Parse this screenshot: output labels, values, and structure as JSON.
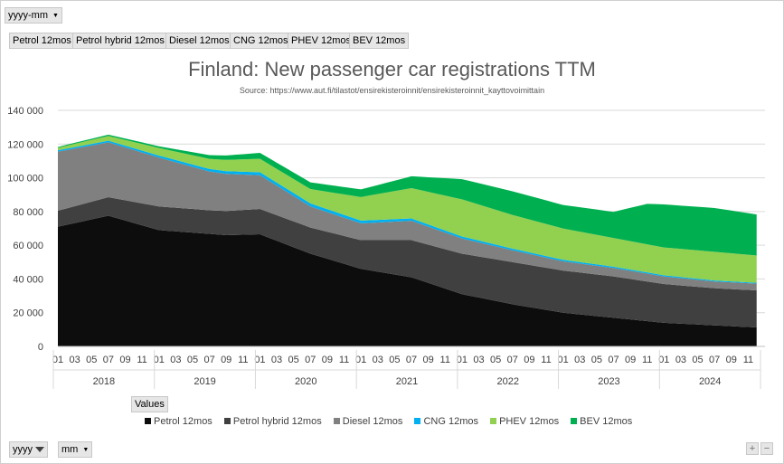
{
  "pivot": {
    "top_filter": "yyyy-mm",
    "value_fields": [
      "Petrol 12mos",
      "Petrol hybrid 12mos",
      "Diesel 12mos",
      "CNG 12mos",
      "PHEV 12mos",
      "BEV 12mos"
    ],
    "values_label": "Values",
    "row_field_1": "yyyy",
    "row_field_2": "mm",
    "zoom_in": "+",
    "zoom_out": "−"
  },
  "chart_data": {
    "type": "area",
    "stacked": true,
    "title": "Finland: New passenger  car registrations TTM",
    "subtitle": "Source: https://www.aut.fi/tilastot/ensirekisteroinnit/ensirekisteroinnit_kayttovoimittain",
    "y_ticks": [
      "0",
      "20 000",
      "40 000",
      "60 000",
      "80 000",
      "100 000",
      "120 000",
      "140 000"
    ],
    "ylim": [
      0,
      140000
    ],
    "months": [
      "01",
      "02",
      "03",
      "04",
      "05",
      "06",
      "07",
      "08",
      "09",
      "10",
      "11",
      "12"
    ],
    "month_tick_labels": [
      "01",
      "03",
      "05",
      "07",
      "09",
      "11"
    ],
    "years": [
      "2018",
      "2019",
      "2020",
      "2021",
      "2022",
      "2023",
      "2024"
    ],
    "last_year_months": 12,
    "legend_position": "bottom",
    "series": [
      {
        "name": "Petrol 12mos",
        "color": "#0d0d0d",
        "anchors": [
          [
            0,
            71000
          ],
          [
            6,
            77500
          ],
          [
            12,
            69000
          ],
          [
            20,
            66000
          ],
          [
            24,
            66500
          ],
          [
            30,
            55000
          ],
          [
            36,
            46000
          ],
          [
            42,
            41000
          ],
          [
            48,
            31000
          ],
          [
            54,
            25000
          ],
          [
            60,
            20000
          ],
          [
            66,
            17000
          ],
          [
            72,
            14000
          ],
          [
            78,
            12500
          ],
          [
            84,
            11000
          ],
          [
            86,
            0
          ]
        ]
      },
      {
        "name": "Petrol hybrid 12mos",
        "color": "#404040",
        "anchors": [
          [
            0,
            9500
          ],
          [
            6,
            11000
          ],
          [
            12,
            14000
          ],
          [
            18,
            14000
          ],
          [
            24,
            15000
          ],
          [
            30,
            15500
          ],
          [
            36,
            17000
          ],
          [
            42,
            22000
          ],
          [
            48,
            24000
          ],
          [
            54,
            25000
          ],
          [
            60,
            25000
          ],
          [
            66,
            24500
          ],
          [
            72,
            23000
          ],
          [
            78,
            22000
          ],
          [
            84,
            22000
          ],
          [
            86,
            0
          ]
        ]
      },
      {
        "name": "Diesel 12mos",
        "color": "#808080",
        "anchors": [
          [
            0,
            35000
          ],
          [
            6,
            32500
          ],
          [
            12,
            29000
          ],
          [
            18,
            23000
          ],
          [
            24,
            20000
          ],
          [
            30,
            12500
          ],
          [
            36,
            10000
          ],
          [
            42,
            11500
          ],
          [
            48,
            9000
          ],
          [
            54,
            7000
          ],
          [
            60,
            5500
          ],
          [
            66,
            5000
          ],
          [
            72,
            4500
          ],
          [
            78,
            4000
          ],
          [
            84,
            4000
          ],
          [
            86,
            0
          ]
        ]
      },
      {
        "name": "CNG 12mos",
        "color": "#00b0f0",
        "anchors": [
          [
            0,
            800
          ],
          [
            12,
            1200
          ],
          [
            24,
            1800
          ],
          [
            30,
            1800
          ],
          [
            36,
            1600
          ],
          [
            42,
            1400
          ],
          [
            48,
            1200
          ],
          [
            54,
            1000
          ],
          [
            60,
            900
          ],
          [
            72,
            700
          ],
          [
            84,
            500
          ],
          [
            86,
            0
          ]
        ]
      },
      {
        "name": "PHEV 12mos",
        "color": "#92d050",
        "anchors": [
          [
            0,
            1500
          ],
          [
            6,
            2800
          ],
          [
            12,
            4500
          ],
          [
            18,
            6000
          ],
          [
            24,
            8000
          ],
          [
            30,
            8500
          ],
          [
            36,
            14000
          ],
          [
            42,
            18000
          ],
          [
            48,
            22000
          ],
          [
            54,
            20000
          ],
          [
            60,
            18500
          ],
          [
            66,
            17000
          ],
          [
            72,
            16500
          ],
          [
            78,
            17000
          ],
          [
            84,
            16000
          ],
          [
            86,
            0
          ]
        ]
      },
      {
        "name": "BEV 12mos",
        "color": "#00b050",
        "anchors": [
          [
            0,
            500
          ],
          [
            6,
            800
          ],
          [
            12,
            1000
          ],
          [
            18,
            2200
          ],
          [
            24,
            3500
          ],
          [
            30,
            4000
          ],
          [
            36,
            4500
          ],
          [
            42,
            7000
          ],
          [
            48,
            12000
          ],
          [
            54,
            14000
          ],
          [
            60,
            14000
          ],
          [
            66,
            15500
          ],
          [
            70,
            24000
          ],
          [
            72,
            25500
          ],
          [
            78,
            26000
          ],
          [
            84,
            24000
          ],
          [
            86,
            0
          ]
        ]
      }
    ]
  }
}
